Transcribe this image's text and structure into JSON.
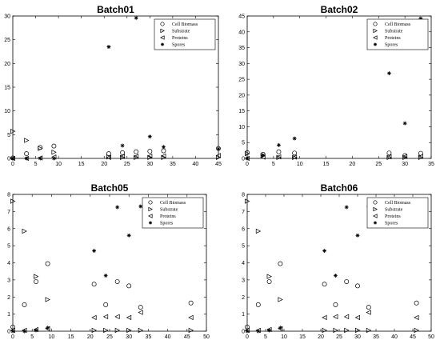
{
  "chart_data": [
    {
      "type": "scatter",
      "title": "Batch01",
      "xlim": [
        0,
        45
      ],
      "ylim": [
        0,
        30
      ],
      "xticks": [
        0,
        5,
        10,
        15,
        20,
        25,
        30,
        35,
        40,
        45
      ],
      "yticks": [
        0,
        5,
        10,
        15,
        20,
        25,
        30
      ],
      "legend_position": "top-right",
      "series": [
        {
          "name": "Cell Biomass",
          "marker": "circle",
          "points": [
            [
              0,
              0.1
            ],
            [
              3,
              1.0
            ],
            [
              6,
              2.3
            ],
            [
              9,
              2.6
            ],
            [
              21,
              1.0
            ],
            [
              24,
              1.2
            ],
            [
              27,
              1.4
            ],
            [
              30,
              1.5
            ],
            [
              33,
              1.6
            ],
            [
              45,
              2.1
            ]
          ]
        },
        {
          "name": "Substrate",
          "marker": "triangle-right",
          "points": [
            [
              0,
              5.7
            ],
            [
              3,
              3.8
            ],
            [
              6,
              2.1
            ],
            [
              9,
              1.3
            ],
            [
              21,
              0.3
            ],
            [
              24,
              0.2
            ],
            [
              27,
              0.2
            ],
            [
              30,
              0.2
            ],
            [
              33,
              0.2
            ],
            [
              45,
              0.2
            ]
          ]
        },
        {
          "name": "Proteins",
          "marker": "triangle-left",
          "points": [
            [
              0,
              0
            ],
            [
              3,
              0
            ],
            [
              6,
              0.1
            ],
            [
              9,
              0.3
            ],
            [
              21,
              0.2
            ],
            [
              24,
              0.4
            ],
            [
              27,
              0.4
            ],
            [
              30,
              0.5
            ],
            [
              33,
              0.5
            ],
            [
              45,
              0.6
            ]
          ]
        },
        {
          "name": "Spores",
          "marker": "star",
          "points": [
            [
              0,
              0
            ],
            [
              3,
              0
            ],
            [
              6,
              0
            ],
            [
              9,
              0
            ],
            [
              21,
              23.5
            ],
            [
              24,
              2.7
            ],
            [
              27,
              29.6
            ],
            [
              30,
              4.6
            ],
            [
              33,
              2.4
            ],
            [
              45,
              2.0
            ]
          ]
        }
      ]
    },
    {
      "type": "scatter",
      "title": "Batch02",
      "xlim": [
        0,
        35
      ],
      "ylim": [
        0,
        45
      ],
      "xticks": [
        0,
        5,
        10,
        15,
        20,
        25,
        30,
        35
      ],
      "yticks": [
        0,
        5,
        10,
        15,
        20,
        25,
        30,
        35,
        40,
        45
      ],
      "legend_position": "top-right",
      "series": [
        {
          "name": "Cell Biomass",
          "marker": "circle",
          "points": [
            [
              0,
              1.8
            ],
            [
              3,
              1.3
            ],
            [
              6,
              2.1
            ],
            [
              9,
              1.7
            ],
            [
              27,
              1.7
            ],
            [
              30,
              0.9
            ],
            [
              33,
              1.6
            ]
          ]
        },
        {
          "name": "Substrate",
          "marker": "triangle-right",
          "points": [
            [
              0,
              1.5
            ],
            [
              3,
              0.9
            ],
            [
              6,
              0.3
            ],
            [
              9,
              0.3
            ],
            [
              27,
              0.3
            ],
            [
              30,
              0.3
            ],
            [
              33,
              0.3
            ]
          ]
        },
        {
          "name": "Proteins",
          "marker": "triangle-left",
          "points": [
            [
              0,
              0
            ],
            [
              3,
              0.4
            ],
            [
              6,
              0.5
            ],
            [
              9,
              0.4
            ],
            [
              27,
              0.5
            ],
            [
              30,
              0.6
            ],
            [
              33,
              0.6
            ]
          ]
        },
        {
          "name": "Spores",
          "marker": "star",
          "points": [
            [
              0,
              0
            ],
            [
              3,
              1.0
            ],
            [
              6,
              4.2
            ],
            [
              9,
              6.3
            ],
            [
              27,
              26.9
            ],
            [
              30,
              11.1
            ],
            [
              33,
              44.2
            ]
          ]
        }
      ]
    },
    {
      "type": "scatter",
      "title": "Batch05",
      "xlim": [
        0,
        50
      ],
      "ylim": [
        0,
        8
      ],
      "xticks": [
        0,
        5,
        10,
        15,
        20,
        25,
        30,
        35,
        40,
        45,
        50
      ],
      "yticks": [
        0,
        1,
        2,
        3,
        4,
        5,
        6,
        7,
        8
      ],
      "legend_position": "top-right",
      "series": [
        {
          "name": "Cell Biomass",
          "marker": "circle",
          "points": [
            [
              0,
              0.25
            ],
            [
              3,
              1.55
            ],
            [
              6,
              2.9
            ],
            [
              9,
              3.95
            ],
            [
              21,
              2.75
            ],
            [
              24,
              1.55
            ],
            [
              27,
              2.9
            ],
            [
              30,
              2.65
            ],
            [
              33,
              1.4
            ],
            [
              46,
              1.65
            ]
          ]
        },
        {
          "name": "Substrate",
          "marker": "triangle-right",
          "points": [
            [
              0,
              7.6
            ],
            [
              3,
              5.85
            ],
            [
              6,
              3.2
            ],
            [
              9,
              1.85
            ],
            [
              21,
              0.05
            ],
            [
              24,
              0.05
            ],
            [
              27,
              0.05
            ],
            [
              30,
              0.05
            ],
            [
              33,
              0.05
            ],
            [
              46,
              0.05
            ]
          ]
        },
        {
          "name": "Proteins",
          "marker": "triangle-left",
          "points": [
            [
              0,
              0.05
            ],
            [
              3,
              0.05
            ],
            [
              6,
              0.1
            ],
            [
              9,
              0.15
            ],
            [
              21,
              0.8
            ],
            [
              24,
              0.85
            ],
            [
              27,
              0.85
            ],
            [
              30,
              0.8
            ],
            [
              33,
              1.1
            ],
            [
              46,
              0.8
            ]
          ]
        },
        {
          "name": "Spores",
          "marker": "star",
          "points": [
            [
              0,
              0
            ],
            [
              3,
              0
            ],
            [
              6,
              0.05
            ],
            [
              9,
              0.2
            ],
            [
              21,
              4.7
            ],
            [
              24,
              3.25
            ],
            [
              27,
              7.25
            ],
            [
              30,
              5.6
            ],
            [
              33,
              7.3
            ]
          ]
        }
      ]
    },
    {
      "type": "scatter",
      "title": "Batch06",
      "xlim": [
        0,
        50
      ],
      "ylim": [
        0,
        8
      ],
      "xticks": [
        0,
        5,
        10,
        15,
        20,
        25,
        30,
        35,
        40,
        45,
        50
      ],
      "yticks": [
        0,
        1,
        2,
        3,
        4,
        5,
        6,
        7,
        8
      ],
      "legend_position": "top-right",
      "series": [
        {
          "name": "Cell Biomass",
          "marker": "circle",
          "points": [
            [
              0,
              0.25
            ],
            [
              3,
              1.55
            ],
            [
              6,
              2.9
            ],
            [
              9,
              3.95
            ],
            [
              21,
              2.75
            ],
            [
              24,
              1.55
            ],
            [
              27,
              2.9
            ],
            [
              30,
              2.65
            ],
            [
              33,
              1.4
            ],
            [
              46,
              1.65
            ]
          ]
        },
        {
          "name": "Substrate",
          "marker": "triangle-right",
          "points": [
            [
              0,
              7.6
            ],
            [
              3,
              5.85
            ],
            [
              6,
              3.2
            ],
            [
              9,
              1.85
            ],
            [
              21,
              0.05
            ],
            [
              24,
              0.05
            ],
            [
              27,
              0.05
            ],
            [
              30,
              0.05
            ],
            [
              33,
              0.05
            ],
            [
              46,
              0.05
            ]
          ]
        },
        {
          "name": "Proteins",
          "marker": "triangle-left",
          "points": [
            [
              0,
              0.05
            ],
            [
              3,
              0.05
            ],
            [
              6,
              0.1
            ],
            [
              9,
              0.15
            ],
            [
              21,
              0.8
            ],
            [
              24,
              0.85
            ],
            [
              27,
              0.85
            ],
            [
              30,
              0.8
            ],
            [
              33,
              1.1
            ],
            [
              46,
              0.8
            ]
          ]
        },
        {
          "name": "Spores",
          "marker": "star",
          "points": [
            [
              0,
              0
            ],
            [
              3,
              0
            ],
            [
              6,
              0.05
            ],
            [
              9,
              0.2
            ],
            [
              21,
              4.7
            ],
            [
              24,
              3.25
            ],
            [
              27,
              7.25
            ],
            [
              30,
              5.6
            ],
            [
              33,
              7.3
            ]
          ]
        }
      ]
    }
  ]
}
